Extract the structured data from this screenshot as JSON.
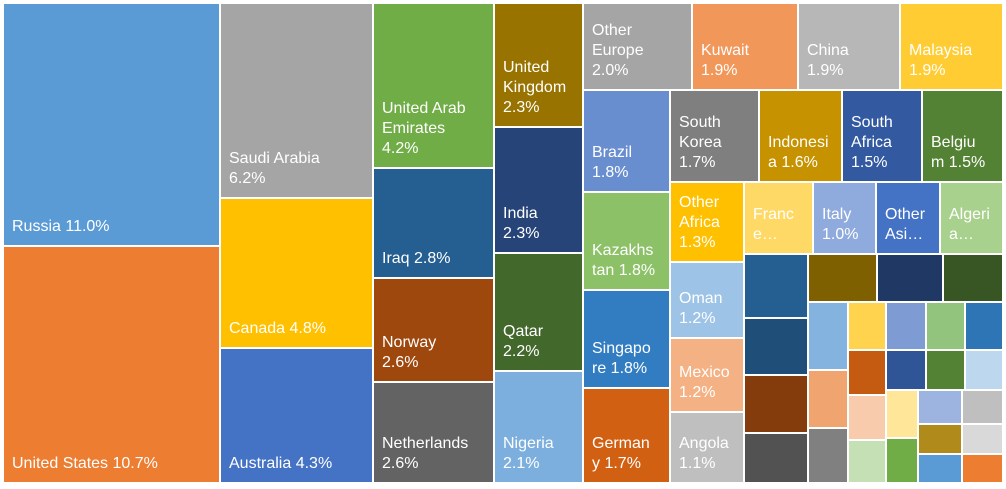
{
  "chart_data": {
    "type": "treemap",
    "title": "",
    "items": [
      {
        "label": "Russia 11.0%",
        "value": 11.0,
        "color": "#5b9bd5"
      },
      {
        "label": "United States 10.7%",
        "value": 10.7,
        "color": "#ed7d31"
      },
      {
        "label": "Saudi Arabia\n6.2%",
        "value": 6.2,
        "color": "#a5a5a5"
      },
      {
        "label": "Canada 4.8%",
        "value": 4.8,
        "color": "#ffc000"
      },
      {
        "label": "Australia 4.3%",
        "value": 4.3,
        "color": "#4472c4"
      },
      {
        "label": "United Arab\nEmirates\n4.2%",
        "value": 4.2,
        "color": "#70ad47"
      },
      {
        "label": "Iraq 2.8%",
        "value": 2.8,
        "color": "#255e91"
      },
      {
        "label": "Norway\n2.6%",
        "value": 2.6,
        "color": "#9e480e"
      },
      {
        "label": "Netherlands\n2.6%",
        "value": 2.6,
        "color": "#636363"
      },
      {
        "label": "United\nKingdom\n2.3%",
        "value": 2.3,
        "color": "#997300"
      },
      {
        "label": "India\n2.3%",
        "value": 2.3,
        "color": "#264478"
      },
      {
        "label": "Qatar\n2.2%",
        "value": 2.2,
        "color": "#43682b"
      },
      {
        "label": "Nigeria\n2.1%",
        "value": 2.1,
        "color": "#7cafdd"
      },
      {
        "label": "Other\nEurope\n2.0%",
        "value": 2.0,
        "color": "#a5a5a5"
      },
      {
        "label": "Kuwait\n1.9%",
        "value": 1.9,
        "color": "#f1975a"
      },
      {
        "label": "China\n1.9%",
        "value": 1.9,
        "color": "#b7b7b7"
      },
      {
        "label": "Malaysia\n1.9%",
        "value": 1.9,
        "color": "#ffcd33"
      },
      {
        "label": "Brazil\n1.8%",
        "value": 1.8,
        "color": "#698ed0"
      },
      {
        "label": "Kazakhs\ntan 1.8%",
        "value": 1.8,
        "color": "#8cc168"
      },
      {
        "label": "Singapo\nre 1.8%",
        "value": 1.8,
        "color": "#327dc2"
      },
      {
        "label": "German\ny 1.7%",
        "value": 1.7,
        "color": "#d26012"
      },
      {
        "label": "South\nKorea\n1.7%",
        "value": 1.7,
        "color": "#7f7f7f"
      },
      {
        "label": "Indonesi\na 1.6%",
        "value": 1.6,
        "color": "#c69200"
      },
      {
        "label": "South\nAfrica\n1.5%",
        "value": 1.5,
        "color": "#335aa1"
      },
      {
        "label": "Belgiu\nm 1.5%",
        "value": 1.5,
        "color": "#548235"
      },
      {
        "label": "Other\nAfrica\n1.3%",
        "value": 1.3,
        "color": "#ffc000"
      },
      {
        "label": "Franc\ne…",
        "value": 1.1,
        "color": "#ffd966"
      },
      {
        "label": "Italy\n1.0%",
        "value": 1.0,
        "color": "#8faadc"
      },
      {
        "label": "Other\nAsi…",
        "value": 1.0,
        "color": "#4472c4"
      },
      {
        "label": "Algeri\na…",
        "value": 1.0,
        "color": "#a9d18e"
      },
      {
        "label": "Oman\n1.2%",
        "value": 1.2,
        "color": "#9dc3e6"
      },
      {
        "label": "Mexico\n1.2%",
        "value": 1.2,
        "color": "#f4b183"
      },
      {
        "label": "Angola\n1.1%",
        "value": 1.1,
        "color": "#bfbfbf"
      }
    ],
    "unlabeled_colors": [
      "#255e91",
      "#7f6000",
      "#203864",
      "#375623",
      "#1f4e79",
      "#84b3df",
      "#ffd34d",
      "#7f9bd3",
      "#93c47d",
      "#2e75b6",
      "#843c0c",
      "#f0a46f",
      "#c55a11",
      "#2f5597",
      "#548235",
      "#bdd7ee",
      "#525252",
      "#808080",
      "#f8cbad",
      "#ffe699",
      "#9db3e0",
      "#bfbfbf",
      "#b08a1a",
      "#d9d9d9",
      "#c5e0b4",
      "#70ad47",
      "#5b9bd5",
      "#ed7d31"
    ]
  }
}
